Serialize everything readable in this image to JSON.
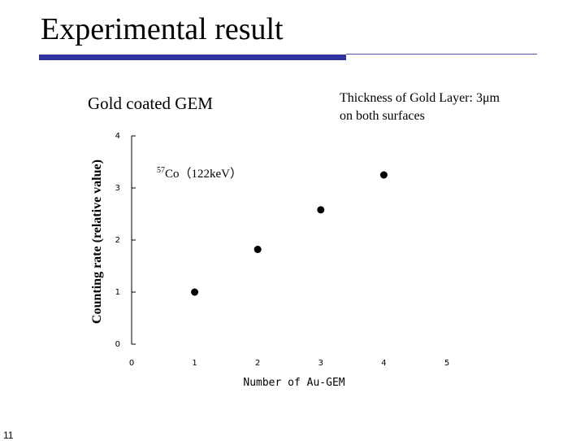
{
  "slide": {
    "title": "Experimental result",
    "page_number": "11",
    "note_line1": "Thickness of Gold Layer: 3μm",
    "note_line2": "on both surfaces",
    "accent_color": "#3333a0"
  },
  "chart_data": {
    "type": "scatter",
    "title": "Gold coated GEM",
    "xlabel": "Number of Au-GEM",
    "ylabel": "Counting rate (relative value)",
    "xlim": [
      0,
      5
    ],
    "ylim": [
      0,
      4
    ],
    "x_ticks": [
      "0",
      "1",
      "2",
      "3",
      "4",
      "5"
    ],
    "y_ticks": [
      "0",
      "1",
      "2",
      "3",
      "4"
    ],
    "annotation": {
      "superscript": "57",
      "text": "Co（122keV）"
    },
    "series": [
      {
        "x": [
          1,
          2,
          3,
          4
        ],
        "y": [
          1.0,
          1.82,
          2.58,
          3.25
        ]
      }
    ],
    "grid": false,
    "marker_color": "#000000"
  }
}
